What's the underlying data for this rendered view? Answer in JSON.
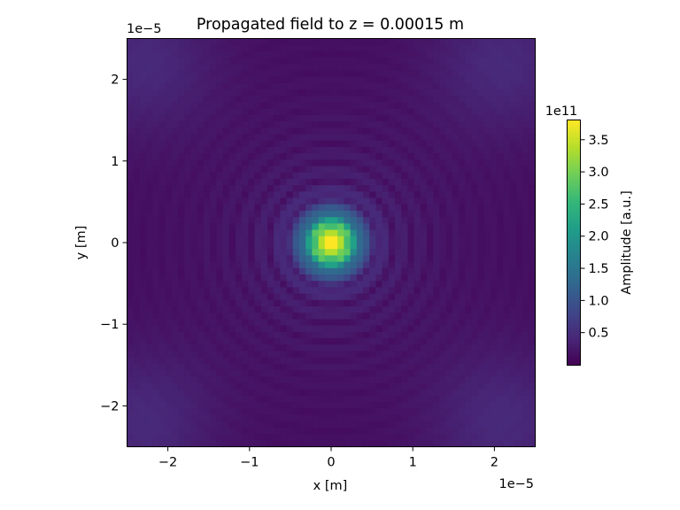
{
  "chart_data": {
    "type": "heatmap",
    "title": "Propagated field to z = 0.00015 m",
    "xlabel": "x [m]",
    "ylabel": "y [m]",
    "x_multiplier": "1e−5",
    "y_multiplier": "1e−5",
    "xlim": [
      -2.5,
      2.5
    ],
    "ylim": [
      -2.5,
      2.5
    ],
    "x_ticks": [
      -2,
      -1,
      0,
      1,
      2
    ],
    "y_ticks": [
      -2,
      -1,
      0,
      1,
      2
    ],
    "x_tick_labels": [
      "−2",
      "−1",
      "0",
      "1",
      "2"
    ],
    "y_tick_labels": [
      "−2",
      "−1",
      "0",
      "1",
      "2"
    ],
    "grid": false,
    "colormap": "viridis",
    "colorbar": {
      "label": "Amplitude [a.u.]",
      "multiplier": "1e11",
      "range": [
        0.0,
        3.8
      ],
      "ticks": [
        0.5,
        1.0,
        1.5,
        2.0,
        2.5,
        3.0,
        3.5
      ],
      "tick_labels": [
        "0.5",
        "1.0",
        "1.5",
        "2.0",
        "2.5",
        "3.0",
        "3.5"
      ]
    },
    "grid_size": [
      64,
      64
    ],
    "field": {
      "peak_amplitude": 3.8,
      "peak_center": [
        0,
        0
      ],
      "central_spot_radius": 0.22,
      "ring_spacing": 0.22,
      "background_level": 0.12,
      "corner_glow_level": 0.3
    }
  },
  "colors": {
    "viridis": [
      "#440154",
      "#482878",
      "#3e4989",
      "#31688e",
      "#26828e",
      "#1f9e89",
      "#35b779",
      "#6ece58",
      "#b5de2b",
      "#fde725"
    ]
  }
}
